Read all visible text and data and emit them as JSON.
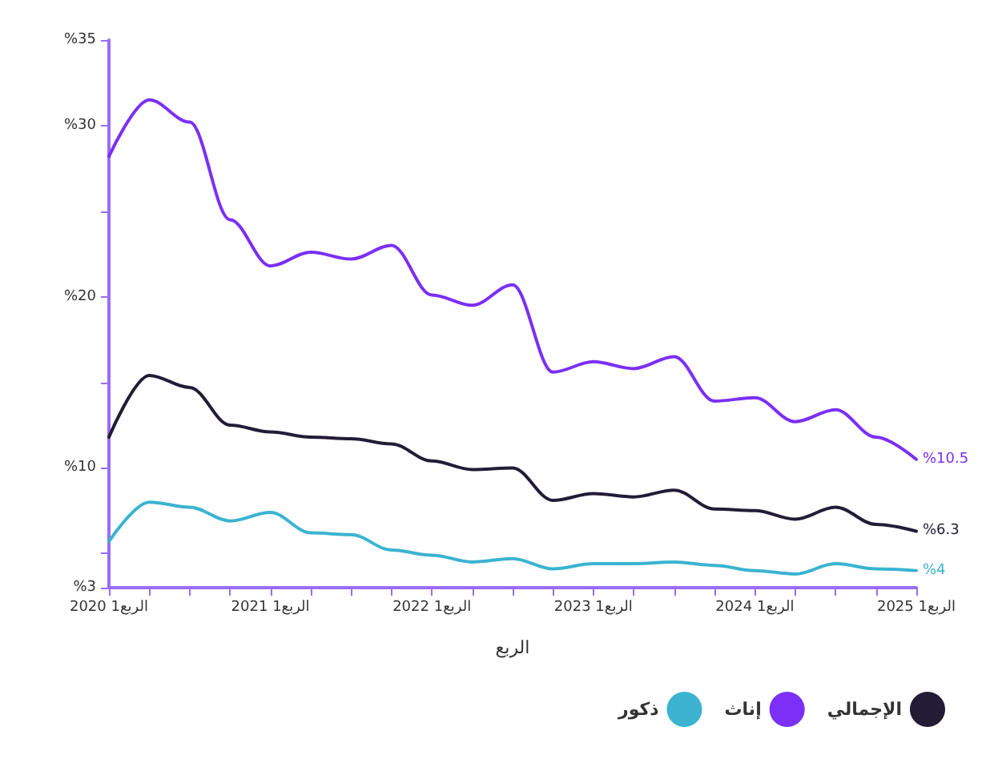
{
  "chart_data": {
    "type": "line",
    "xlabel": "الربع",
    "categories": [
      "الربع1 2020",
      null,
      null,
      null,
      "الربع1 2021",
      null,
      null,
      null,
      "الربع1 2022",
      null,
      null,
      null,
      "الربع1 2023",
      null,
      null,
      null,
      "الربع1 2024",
      null,
      null,
      null,
      "الربع1 2025"
    ],
    "series": [
      {
        "name": "ذكور",
        "color": "#3bb3d0",
        "values": [
          5.7,
          8.0,
          7.7,
          6.9,
          7.4,
          6.2,
          6.1,
          5.2,
          4.9,
          4.5,
          4.7,
          4.1,
          4.4,
          4.4,
          4.5,
          4.3,
          4.0,
          3.8,
          4.4,
          4.1,
          4
        ]
      },
      {
        "name": "إناث",
        "color": "#7b2ff7",
        "values": [
          28.2,
          31.5,
          30.2,
          24.5,
          21.8,
          22.6,
          22.2,
          23.0,
          20.1,
          19.5,
          20.7,
          15.6,
          16.2,
          15.8,
          16.5,
          13.9,
          14.1,
          12.7,
          13.4,
          11.8,
          10.5
        ]
      },
      {
        "name": "الإجمالي",
        "color": "#231c36",
        "values": [
          11.8,
          15.4,
          14.7,
          12.5,
          12.1,
          11.8,
          11.7,
          11.4,
          10.4,
          9.9,
          10.0,
          8.1,
          8.5,
          8.3,
          8.7,
          7.6,
          7.5,
          7.0,
          7.7,
          6.7,
          6.3
        ]
      }
    ],
    "ylim": [
      3,
      35
    ],
    "yticks": [
      {
        "value": 3,
        "label": "%3"
      },
      {
        "value": 5,
        "label": null
      },
      {
        "value": 10,
        "label": "%10"
      },
      {
        "value": 15,
        "label": null
      },
      {
        "value": 20,
        "label": "%20"
      },
      {
        "value": 25,
        "label": null
      },
      {
        "value": 30,
        "label": "%30"
      },
      {
        "value": 35,
        "label": "%35"
      }
    ],
    "annotations": [
      {
        "text": "%10.5",
        "x": "الربع1 2025",
        "y": 10.5
      },
      {
        "text": "%6.3",
        "x": "الربع1 2025",
        "y": 6.3
      },
      {
        "text": "%4",
        "x": "الربع1 2025",
        "y": 4
      }
    ],
    "legend": "bottom right",
    "grid": false,
    "marker": "none",
    "line_style": "solid"
  }
}
